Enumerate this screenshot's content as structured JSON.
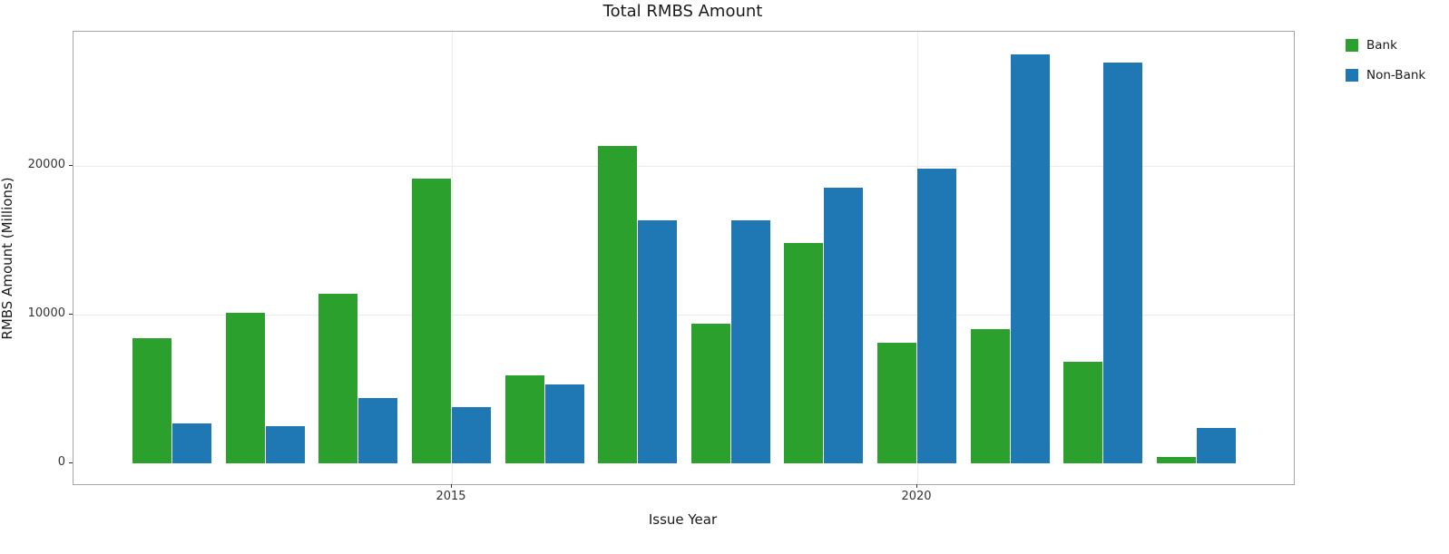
{
  "chart_data": {
    "type": "bar",
    "title": "Total RMBS Amount",
    "xlabel": "Issue Year",
    "ylabel": "RMBS Amount (Millions)",
    "categories": [
      "2012",
      "2013",
      "2014",
      "2015",
      "2016",
      "2017",
      "2018",
      "2019",
      "2020",
      "2021",
      "2022",
      "2023"
    ],
    "series": [
      {
        "name": "Bank",
        "color": "#2ca02c",
        "values": [
          8400,
          10100,
          11400,
          19100,
          5900,
          21300,
          9400,
          14800,
          8100,
          9000,
          6800,
          400
        ]
      },
      {
        "name": "Non-Bank",
        "color": "#1f77b4",
        "values": [
          2700,
          2500,
          4400,
          3800,
          5300,
          16300,
          16300,
          18500,
          19800,
          27500,
          26900,
          2400
        ]
      }
    ],
    "ylim": [
      0,
      29000
    ],
    "yticks": [
      0,
      10000,
      20000
    ],
    "xticks": [
      "2015",
      "2020"
    ],
    "grid": true,
    "legend_position": "top-right-outside"
  }
}
